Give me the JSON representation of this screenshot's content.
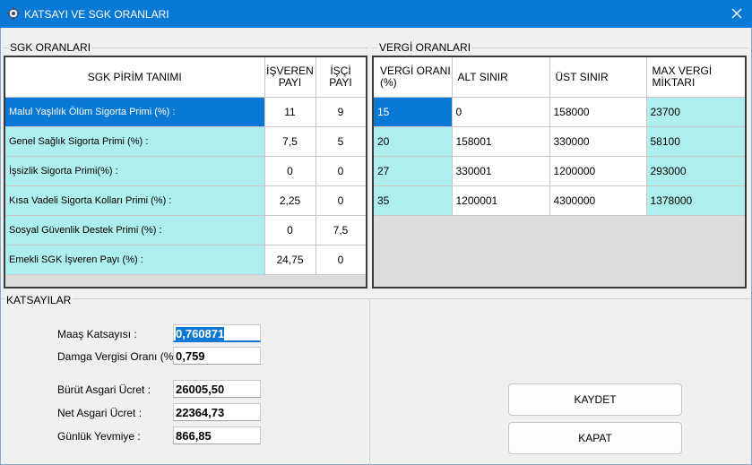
{
  "window": {
    "title": "KATSAYI VE SGK ORANLARI",
    "app_icon": "gear-icon",
    "close_icon": "close-icon"
  },
  "sgk": {
    "group_title": "SGK ORANLARI",
    "headers": {
      "name": "SGK PİRİM TANIMI",
      "employer": "İŞVEREN\nPAYI",
      "worker": "İŞÇİ\nPAYI"
    },
    "rows": [
      {
        "name": "Malul Yaşlılık Ölüm Sigorta Primi (%) :",
        "employer": "11",
        "worker": "9"
      },
      {
        "name": "Genel Sağlık Sigorta Primi (%) :",
        "employer": "7,5",
        "worker": "5"
      },
      {
        "name": "İşsizlik Sigorta Primi(%) :",
        "employer": "0",
        "worker": "0"
      },
      {
        "name": "Kısa Vadeli Sigorta Kolları Primi (%) :",
        "employer": "2,25",
        "worker": "0"
      },
      {
        "name": "Sosyal Güvenlik Destek Primi (%) :",
        "employer": "0",
        "worker": "7,5"
      },
      {
        "name": "Emekli SGK İşveren Payı (%) :",
        "employer": "24,75",
        "worker": "0"
      }
    ]
  },
  "vergi": {
    "group_title": "VERGİ ORANLARI",
    "headers": {
      "rate": "VERGİ ORANI\n(%)",
      "lower": "ALT SINIR",
      "upper": "ÜST SINIR",
      "max": "MAX VERGİ\nMİKTARI"
    },
    "rows": [
      {
        "rate": "15",
        "lower": "0",
        "upper": "158000",
        "max": "23700"
      },
      {
        "rate": "20",
        "lower": "158001",
        "upper": "330000",
        "max": "58100"
      },
      {
        "rate": "27",
        "lower": "330001",
        "upper": "1200000",
        "max": "293000"
      },
      {
        "rate": "35",
        "lower": "1200001",
        "upper": "4300000",
        "max": "1378000"
      }
    ]
  },
  "katsayilar": {
    "group_title": "KATSAYILAR",
    "fields": {
      "maas_label": "Maaş Katsayısı :",
      "maas_value": "0,760871",
      "damga_label": "Damga Vergisi Oranı (%) :",
      "damga_value": "0,759",
      "brut_label": "Bürüt Asgari Ücret :",
      "brut_value": "26005,50",
      "net_label": "Net Asgari Ücret :",
      "net_value": "22364,73",
      "gunluk_label": "Günlük Yevmiye :",
      "gunluk_value": "866,85"
    }
  },
  "buttons": {
    "save": "KAYDET",
    "close": "KAPAT"
  }
}
